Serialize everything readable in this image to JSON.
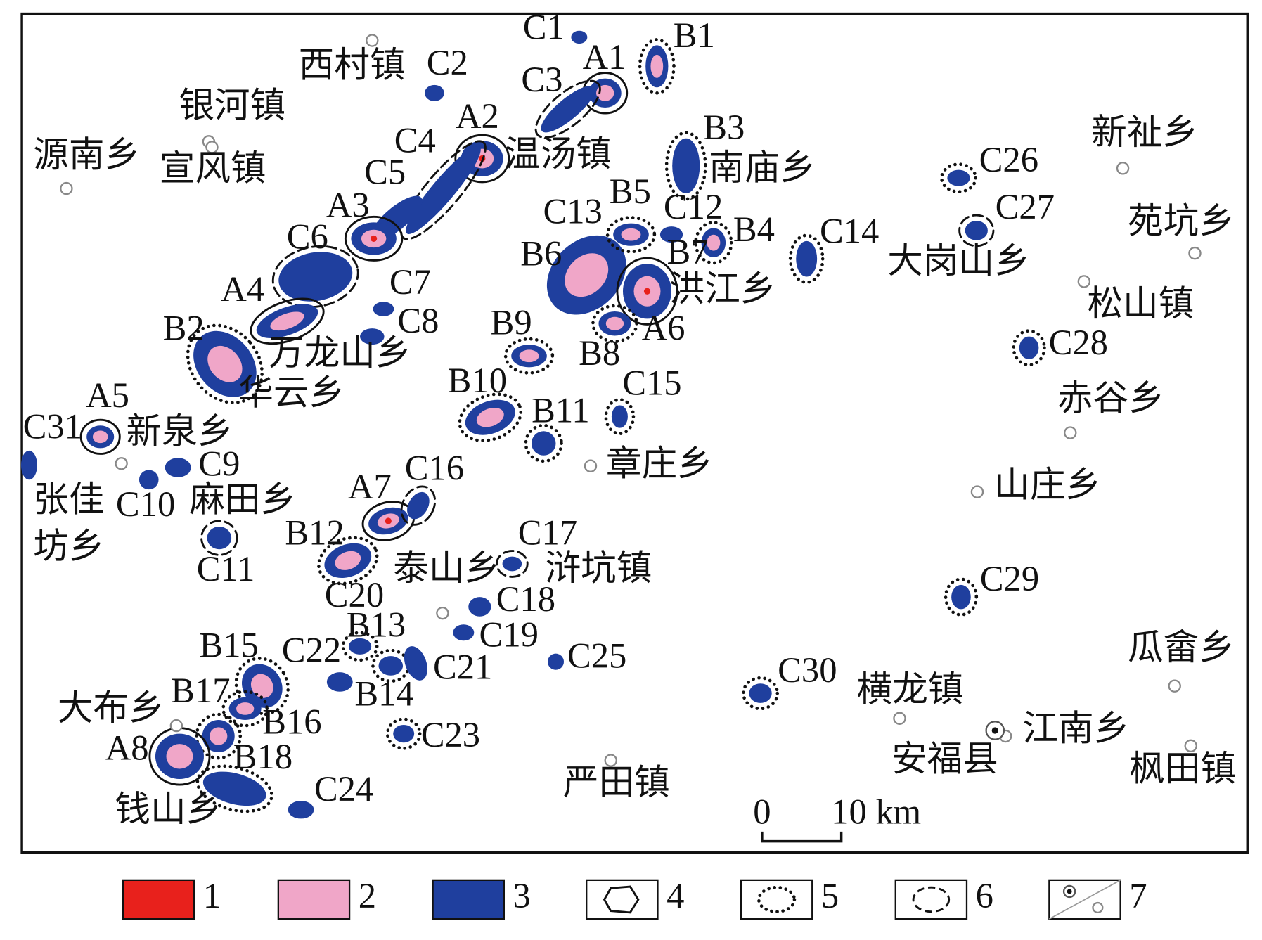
{
  "map": {
    "anomalies": [
      "C1",
      "B1",
      "A1",
      "C2",
      "C3",
      "A2",
      "B3",
      "C4",
      "C26",
      "C5",
      "A3",
      "B5",
      "C12",
      "C13",
      "C27",
      "B4",
      "C14",
      "C6",
      "B6",
      "B7",
      "C7",
      "A4",
      "C8",
      "B9",
      "A6",
      "C28",
      "B2",
      "B8",
      "C15",
      "B10",
      "A5",
      "B11",
      "C31",
      "C9",
      "C16",
      "A7",
      "C10",
      "C17",
      "B12",
      "C11",
      "C18",
      "C20",
      "C29",
      "B13",
      "C19",
      "B15",
      "C22",
      "C25",
      "C21",
      "C30",
      "B14",
      "B17",
      "B16",
      "C23",
      "A8",
      "B18",
      "C24"
    ],
    "towns": [
      "西村镇",
      "银河镇",
      "源南乡",
      "宣风镇",
      "温汤镇",
      "南庙乡",
      "新祉乡",
      "苑坑乡",
      "大岗山乡",
      "洪江乡",
      "松山镇",
      "万龙山乡",
      "华云乡",
      "赤谷乡",
      "新泉乡",
      "章庄乡",
      "山庄乡",
      "张佳",
      "坊乡",
      "麻田乡",
      "泰山乡",
      "浒坑镇",
      "瓜畲乡",
      "横龙镇",
      "大布乡",
      "江南乡",
      "安福县",
      "枫田镇",
      "严田镇",
      "钱山乡"
    ]
  },
  "scale_bar": {
    "start": "0",
    "end": "10 km"
  },
  "legend": [
    "1",
    "2",
    "3",
    "4",
    "5",
    "6",
    "7"
  ]
}
